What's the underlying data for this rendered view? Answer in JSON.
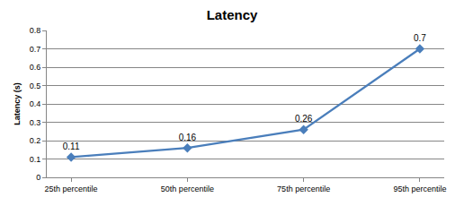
{
  "chart_data": {
    "type": "line",
    "title": "Latency",
    "y_label": "Latency (s)",
    "categories": [
      "25th percentile",
      "50th percentile",
      "75th percentile",
      "95th percentile"
    ],
    "values": [
      0.11,
      0.16,
      0.26,
      0.7
    ],
    "color": "#4a7ebb",
    "marker": "diamond",
    "line_style": "solid",
    "data_labels": true,
    "ylim": [
      0,
      0.8
    ],
    "yticks": [
      0,
      0.1,
      0.2,
      0.3,
      0.4,
      0.5,
      0.6,
      0.7,
      0.8
    ],
    "grid": true
  }
}
